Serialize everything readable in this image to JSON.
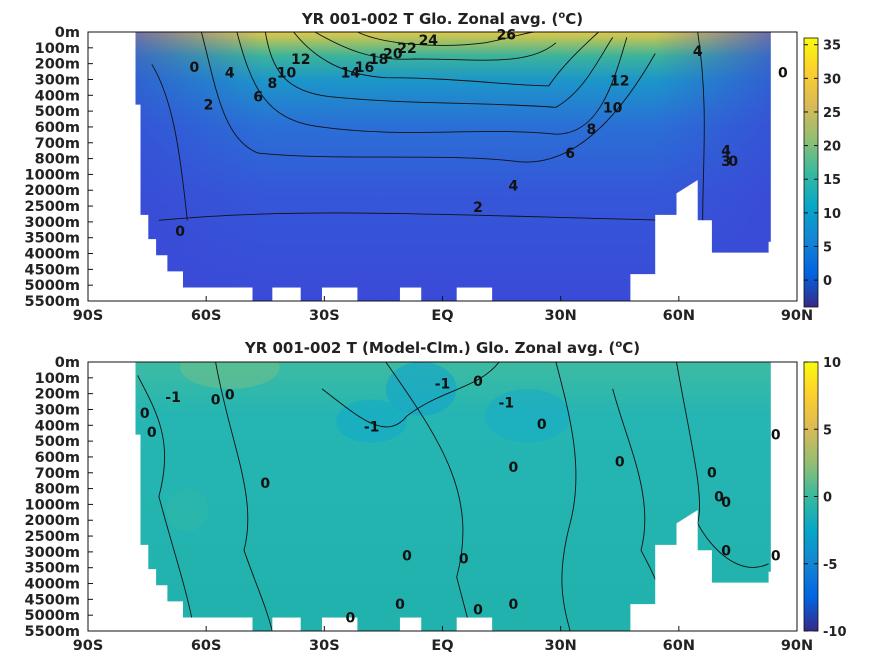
{
  "chart_data": [
    {
      "type": "heatmap",
      "title": "YR 001-002 T Glo. Zonal avg. (",
      "title_unit_sup": "o",
      "title_unit_tail": "C)",
      "x_ticks": [
        "90S",
        "60S",
        "30S",
        "EQ",
        "30N",
        "60N",
        "90N"
      ],
      "y_ticks": [
        "0m",
        "100m",
        "200m",
        "300m",
        "400m",
        "500m",
        "600m",
        "700m",
        "800m",
        "1000m",
        "2000m",
        "2500m",
        "3000m",
        "3500m",
        "4000m",
        "4500m",
        "5000m",
        "5500m"
      ],
      "colorbar_ticks": [
        "35",
        "30",
        "25",
        "20",
        "15",
        "10",
        "5",
        "0"
      ],
      "colorbar_range": [
        -4,
        36
      ],
      "colormap": "parula",
      "contour_labels": [
        "0",
        "4",
        "2",
        "6",
        "8",
        "10",
        "12",
        "14",
        "16",
        "18",
        "20",
        "22",
        "24",
        "26",
        "4",
        "12",
        "10",
        "8",
        "6",
        "4",
        "2",
        "0",
        "4",
        "3",
        "0",
        "0"
      ],
      "surface_max": 27,
      "deep_value": 1
    },
    {
      "type": "heatmap",
      "title": "YR 001-002 T (Model-Clm.) Glo. Zonal avg. (",
      "title_unit_sup": "o",
      "title_unit_tail": "C)",
      "x_ticks": [
        "90S",
        "60S",
        "30S",
        "EQ",
        "30N",
        "60N",
        "90N"
      ],
      "y_ticks": [
        "0m",
        "100m",
        "200m",
        "300m",
        "400m",
        "500m",
        "600m",
        "700m",
        "800m",
        "1000m",
        "2000m",
        "2500m",
        "3000m",
        "3500m",
        "4000m",
        "4500m",
        "5000m",
        "5500m"
      ],
      "colorbar_ticks": [
        "10",
        "5",
        "0",
        "-5",
        "-10"
      ],
      "colorbar_range": [
        -10,
        10
      ],
      "colormap": "parula",
      "contour_labels": [
        "-1",
        "0",
        "0",
        "0",
        "-1",
        "0",
        "-1",
        "0",
        "-1",
        "0",
        "0",
        "0",
        "0",
        "0",
        "0",
        "0",
        "0",
        "0",
        "0",
        "0",
        "0",
        "0",
        "0",
        "0",
        "0"
      ]
    }
  ],
  "colors": {
    "parula": [
      "#352a87",
      "#0363e1",
      "#1485d4",
      "#06a7c6",
      "#38b99e",
      "#92bf73",
      "#d9ba56",
      "#fcce2e",
      "#f9fb0e"
    ],
    "contour_line": "#111111",
    "background": "#ffffff"
  }
}
